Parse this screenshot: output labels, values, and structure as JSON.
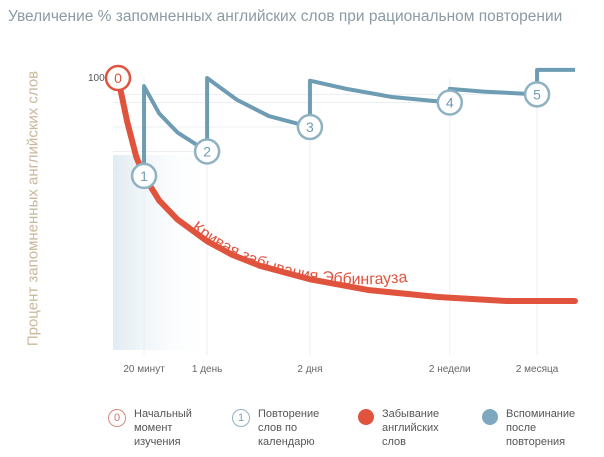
{
  "chart_data": {
    "type": "line",
    "title": "Увеличение % запомненных английских слов при рациональном повторении",
    "xlabel": "",
    "ylabel": "Процент запомненных английских слов",
    "xlim": [
      0,
      100
    ],
    "ylim": [
      0,
      100
    ],
    "y_tick": {
      "value": 100,
      "label": "100%"
    },
    "x_ticks": [
      {
        "x": 5.7,
        "label": "20 минут"
      },
      {
        "x": 19.5,
        "label": "1 день"
      },
      {
        "x": 42,
        "label": "2 дня"
      },
      {
        "x": 72.6,
        "label": "2 недели"
      },
      {
        "x": 91.7,
        "label": "2 месяца"
      }
    ],
    "forgetting_curve": {
      "name": "Кривая забывания Эббингауза",
      "color": "#e0533d",
      "points": [
        [
          0,
          100
        ],
        [
          2,
          84
        ],
        [
          4,
          71
        ],
        [
          5.7,
          64
        ],
        [
          9,
          55
        ],
        [
          13,
          48
        ],
        [
          19.5,
          40
        ],
        [
          25,
          35
        ],
        [
          31,
          31
        ],
        [
          42,
          26
        ],
        [
          55,
          22
        ],
        [
          70,
          19.5
        ],
        [
          85,
          18
        ],
        [
          100,
          18
        ]
      ]
    },
    "recall_curve": {
      "color": "#6e9cb3",
      "segments": [
        [
          [
            5.7,
            64
          ],
          [
            5.7,
            97
          ],
          [
            9,
            87
          ],
          [
            13,
            80
          ],
          [
            19.5,
            73
          ]
        ],
        [
          [
            19.5,
            73
          ],
          [
            19.5,
            100
          ],
          [
            26,
            92
          ],
          [
            33,
            86
          ],
          [
            42,
            82
          ]
        ],
        [
          [
            42,
            82
          ],
          [
            42,
            99
          ],
          [
            50,
            96
          ],
          [
            60,
            93
          ],
          [
            72.6,
            91
          ]
        ],
        [
          [
            72.6,
            91
          ],
          [
            72.6,
            96
          ],
          [
            80,
            95
          ],
          [
            91.7,
            94
          ]
        ],
        [
          [
            91.7,
            94
          ],
          [
            91.7,
            103
          ],
          [
            100,
            103
          ]
        ]
      ]
    },
    "markers": [
      {
        "label": "0",
        "x": 0,
        "y": 100,
        "kind": "start"
      },
      {
        "label": "1",
        "x": 5.7,
        "y": 64,
        "kind": "repeat"
      },
      {
        "label": "2",
        "x": 19.5,
        "y": 73,
        "kind": "repeat"
      },
      {
        "label": "3",
        "x": 42,
        "y": 82,
        "kind": "repeat"
      },
      {
        "label": "4",
        "x": 72.6,
        "y": 91,
        "kind": "repeat"
      },
      {
        "label": "5",
        "x": 91.7,
        "y": 94,
        "kind": "repeat"
      }
    ],
    "legend": [
      {
        "icon": "0",
        "lines": [
          "Начальный",
          "момент",
          "изучения"
        ],
        "kind": "start"
      },
      {
        "icon": "1",
        "lines": [
          "Повторение",
          "слов по",
          "календарю"
        ],
        "kind": "repeat"
      },
      {
        "icon": "",
        "lines": [
          "Забывание",
          "английских",
          "слов"
        ],
        "kind": "forget"
      },
      {
        "icon": "",
        "lines": [
          "Вспоминание",
          "после",
          "повторения"
        ],
        "kind": "recall"
      }
    ],
    "legend_placement": "bottom"
  }
}
